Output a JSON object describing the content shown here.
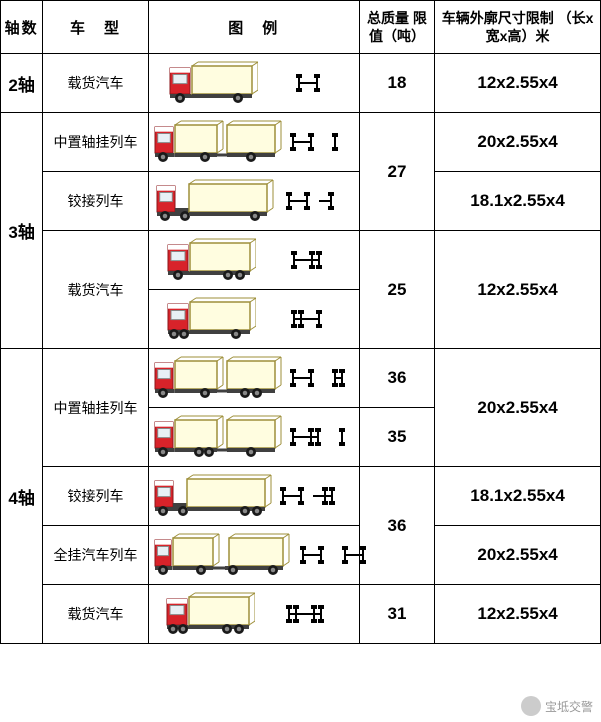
{
  "headers": {
    "axles": "轴数",
    "type": "车　型",
    "diagram": "图　例",
    "weight": "总质量\n限值（吨）",
    "dimensions": "车辆外廓尺寸限制\n（长x宽x高）米"
  },
  "truck_colors": {
    "cab": "#d8232a",
    "cab_dark": "#8b1518",
    "cargo": "#fffde0",
    "cargo_stroke": "#9e8f3a",
    "chassis": "#404040",
    "wheel": "#1a1a1a",
    "hub": "#888888",
    "window": "#e8f0f5"
  },
  "axle_diagram_color": "#000000",
  "rows": [
    {
      "axle_label": "2轴",
      "axle_rowspan": 1,
      "type": "载货汽车",
      "type_rowspan": 1,
      "trucks": [
        {
          "kind": "rigid",
          "rear_axles": 1,
          "axle_pattern": "1-1"
        }
      ],
      "weight": "18",
      "weight_rowspan": 1,
      "dim": "12x2.55x4",
      "dim_rowspan": 1
    },
    {
      "axle_label": "3轴",
      "axle_rowspan": 4,
      "type": "中置轴挂列车",
      "type_rowspan": 1,
      "trucks": [
        {
          "kind": "trailer",
          "rear_axles": 1,
          "trailer_axles": 1,
          "axle_pattern": "1-1 1"
        }
      ],
      "weight": "27",
      "weight_rowspan": 2,
      "dim": "20x2.55x4",
      "dim_rowspan": 1
    },
    {
      "type": "铰接列车",
      "type_rowspan": 1,
      "trucks": [
        {
          "kind": "semi",
          "tractor_rear": 1,
          "trailer_rear": 1,
          "axle_pattern": "1-1 -1"
        }
      ],
      "dim": "18.1x2.55x4",
      "dim_rowspan": 1
    },
    {
      "type": "载货汽车",
      "type_rowspan": 2,
      "trucks": [
        {
          "kind": "rigid",
          "rear_axles": 2,
          "axle_pattern": "1-2"
        },
        {
          "kind": "rigid",
          "front_axles": 2,
          "rear_axles": 1,
          "axle_pattern": "2-1"
        }
      ],
      "weight": "25",
      "weight_rowspan": 2,
      "dim": "12x2.55x4",
      "dim_rowspan": 2
    },
    {
      "skip": true
    },
    {
      "axle_label": "4轴",
      "axle_rowspan": 5,
      "type": "中置轴挂列车",
      "type_rowspan": 2,
      "trucks": [
        {
          "kind": "trailer",
          "rear_axles": 1,
          "trailer_axles": 2,
          "axle_pattern": "1-1 2"
        }
      ],
      "weight": "36",
      "weight_rowspan": 1,
      "dim": "20x2.55x4",
      "dim_rowspan": 2
    },
    {
      "trucks": [
        {
          "kind": "trailer",
          "rear_axles": 2,
          "trailer_axles": 1,
          "axle_pattern": "1-2 1"
        }
      ],
      "weight": "35",
      "weight_rowspan": 1
    },
    {
      "type": "铰接列车",
      "type_rowspan": 1,
      "trucks": [
        {
          "kind": "semi",
          "tractor_rear": 1,
          "trailer_rear": 2,
          "axle_pattern": "1-1 -2"
        }
      ],
      "weight": "36",
      "weight_rowspan": 2,
      "dim": "18.1x2.55x4",
      "dim_rowspan": 1
    },
    {
      "type": "全挂汽车列车",
      "type_rowspan": 1,
      "trucks": [
        {
          "kind": "full_trailer",
          "rear_axles": 1,
          "trailer_front": 1,
          "trailer_rear": 1,
          "axle_pattern": "1-1 1-1"
        }
      ],
      "dim": "20x2.55x4",
      "dim_rowspan": 1
    },
    {
      "type": "载货汽车",
      "type_rowspan": 1,
      "trucks": [
        {
          "kind": "rigid",
          "front_axles": 2,
          "rear_axles": 2,
          "axle_pattern": "2-2"
        }
      ],
      "weight": "31",
      "weight_rowspan": 1,
      "dim": "12x2.55x4",
      "dim_rowspan": 1
    }
  ],
  "watermark": "宝坻交警"
}
